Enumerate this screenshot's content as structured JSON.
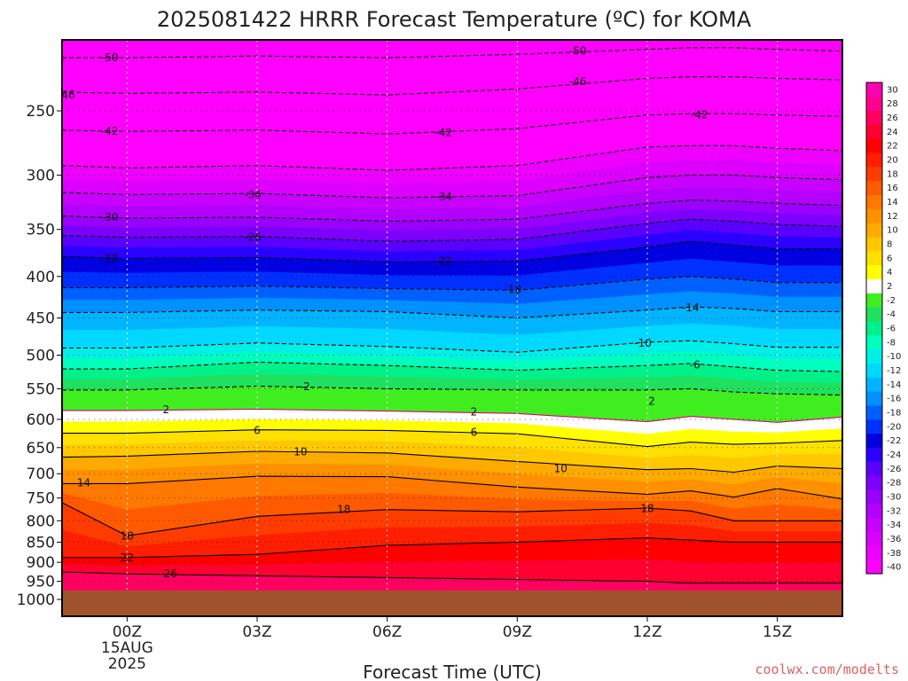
{
  "title": "2025081422 HRRR Forecast Temperature (ºC) for KOMA",
  "chart_data": {
    "type": "heatmap",
    "title": "2025081422 HRRR Forecast Temperature (ºC) for KOMA",
    "xlabel": "Forecast Time (UTC)",
    "ylabel": "",
    "x_tick_labels": [
      {
        "t": 2,
        "label": "00Z"
      },
      {
        "t": 5,
        "label": "03Z"
      },
      {
        "t": 8,
        "label": "06Z"
      },
      {
        "t": 11,
        "label": "09Z"
      },
      {
        "t": 14,
        "label": "12Z"
      },
      {
        "t": 17,
        "label": "15Z"
      }
    ],
    "x_date_labels": [
      "15AUG",
      "2025"
    ],
    "xlim": [
      0.5,
      18.5
    ],
    "y_tick_labels": [
      1000,
      950,
      900,
      850,
      800,
      750,
      700,
      650,
      600,
      550,
      500,
      450,
      400,
      350,
      300,
      250
    ],
    "ylim": [
      1000,
      200
    ],
    "y_scale": "log-pressure",
    "grid": true,
    "colorbar": {
      "levels": [
        -40,
        -38,
        -36,
        -34,
        -32,
        -30,
        -28,
        -26,
        -24,
        -22,
        -20,
        -18,
        -16,
        -14,
        -12,
        -10,
        -8,
        -6,
        -4,
        -2,
        2,
        4,
        6,
        8,
        10,
        12,
        14,
        16,
        18,
        20,
        22,
        24,
        26,
        28,
        30
      ],
      "colors": [
        "#ff00ff",
        "#ee00ff",
        "#dd00ff",
        "#c800ff",
        "#b400ff",
        "#9a00ff",
        "#7d00ff",
        "#5a00ff",
        "#2a00ff",
        "#0000e0",
        "#0030ff",
        "#0060ff",
        "#0090ff",
        "#00b4ff",
        "#00d8ff",
        "#00f0e8",
        "#00ffbc",
        "#00f08a",
        "#20e060",
        "#40ee20",
        "#ffffff",
        "#ffff00",
        "#ffe000",
        "#ffc800",
        "#ffaa00",
        "#ff9000",
        "#ff7800",
        "#ff5a00",
        "#ff3c00",
        "#ff1e00",
        "#ff0000",
        "#ff0030",
        "#ff0060",
        "#ff0090",
        "#ff00b0"
      ]
    },
    "times": [
      0.5,
      2,
      5,
      8,
      11,
      14,
      15,
      16,
      17,
      18.5
    ],
    "isotherms": [
      {
        "value": -50,
        "p": [
          215,
          215,
          214,
          215,
          213,
          210,
          209,
          209,
          210,
          211
        ]
      },
      {
        "value": -46,
        "p": [
          237,
          238,
          237,
          239,
          235,
          228,
          227,
          227,
          228,
          229
        ]
      },
      {
        "value": -42,
        "p": [
          264,
          265,
          264,
          267,
          263,
          253,
          252,
          252,
          253,
          254
        ]
      },
      {
        "value": -38,
        "p": [
          292,
          294,
          292,
          296,
          292,
          277,
          276,
          276,
          278,
          280
        ]
      },
      {
        "value": -34,
        "p": [
          315,
          317,
          316,
          320,
          318,
          302,
          300,
          300,
          302,
          304
        ]
      },
      {
        "value": -30,
        "p": [
          337,
          339,
          338,
          342,
          340,
          325,
          322,
          323,
          325,
          327
        ]
      },
      {
        "value": -26,
        "p": [
          356,
          358,
          357,
          362,
          360,
          344,
          340,
          342,
          345,
          347
        ]
      },
      {
        "value": -22,
        "p": [
          378,
          380,
          379,
          384,
          383,
          368,
          362,
          366,
          370,
          370
        ]
      },
      {
        "value": -18,
        "p": [
          413,
          413,
          411,
          414,
          416,
          403,
          400,
          403,
          407,
          407
        ]
      },
      {
        "value": -14,
        "p": [
          443,
          443,
          440,
          442,
          450,
          440,
          436,
          438,
          442,
          442
        ]
      },
      {
        "value": -10,
        "p": [
          490,
          490,
          483,
          488,
          496,
          482,
          480,
          484,
          489,
          489
        ]
      },
      {
        "value": -6,
        "p": [
          520,
          520,
          510,
          515,
          522,
          515,
          512,
          517,
          522,
          524
        ]
      },
      {
        "value": -2,
        "p": [
          552,
          552,
          546,
          550,
          552,
          552,
          550,
          555,
          558,
          560
        ]
      },
      {
        "value": 2,
        "p": [
          585,
          585,
          583,
          586,
          590,
          604,
          595,
          600,
          605,
          596
        ]
      },
      {
        "value": 6,
        "p": [
          624,
          624,
          618,
          619,
          625,
          648,
          640,
          644,
          642,
          637
        ]
      },
      {
        "value": 10,
        "p": [
          668,
          666,
          657,
          660,
          676,
          692,
          690,
          697,
          685,
          690
        ]
      },
      {
        "value": 14,
        "p": [
          720,
          720,
          705,
          706,
          727,
          742,
          735,
          748,
          730,
          752
        ]
      },
      {
        "value": 18,
        "p": [
          760,
          835,
          790,
          775,
          780,
          772,
          778,
          800,
          800,
          800
        ]
      },
      {
        "value": 22,
        "p": [
          888,
          888,
          880,
          858,
          850,
          840,
          845,
          850,
          850,
          850
        ]
      },
      {
        "value": 26,
        "p": [
          925,
          930,
          935,
          940,
          945,
          950,
          955,
          955,
          955,
          955
        ]
      }
    ],
    "contour_labels": [
      {
        "value": "-50",
        "t": 1.6,
        "p": 215
      },
      {
        "value": "-46",
        "t": 0.6,
        "p": 239
      },
      {
        "value": "-42",
        "t": 1.6,
        "p": 265
      },
      {
        "value": "-34",
        "t": 4.9,
        "p": 317
      },
      {
        "value": "-30",
        "t": 1.6,
        "p": 338
      },
      {
        "value": "-26",
        "t": 4.9,
        "p": 358
      },
      {
        "value": "-22",
        "t": 1.6,
        "p": 380
      },
      {
        "value": "-42",
        "t": 9.3,
        "p": 266
      },
      {
        "value": "-34",
        "t": 9.3,
        "p": 319
      },
      {
        "value": "-22",
        "t": 9.3,
        "p": 383
      },
      {
        "value": "-18",
        "t": 10.9,
        "p": 415
      },
      {
        "value": "-50",
        "t": 12.4,
        "p": 211
      },
      {
        "value": "-46",
        "t": 12.4,
        "p": 230
      },
      {
        "value": "-42",
        "t": 15.2,
        "p": 253
      },
      {
        "value": "-14",
        "t": 15.0,
        "p": 437
      },
      {
        "value": "-10",
        "t": 13.9,
        "p": 483
      },
      {
        "value": "-6",
        "t": 15.1,
        "p": 514
      },
      {
        "value": "-2",
        "t": 6.1,
        "p": 547
      },
      {
        "value": "2",
        "t": 2.9,
        "p": 584
      },
      {
        "value": "2",
        "t": 10.0,
        "p": 587
      },
      {
        "value": "2",
        "t": 14.1,
        "p": 570
      },
      {
        "value": "6",
        "t": 5.0,
        "p": 619
      },
      {
        "value": "6",
        "t": 10.0,
        "p": 622
      },
      {
        "value": "10",
        "t": 6.0,
        "p": 658
      },
      {
        "value": "10",
        "t": 12.0,
        "p": 690
      },
      {
        "value": "14",
        "t": 1.0,
        "p": 718
      },
      {
        "value": "18",
        "t": 2.0,
        "p": 835
      },
      {
        "value": "18",
        "t": 7.0,
        "p": 775
      },
      {
        "value": "18",
        "t": 14.0,
        "p": 773
      },
      {
        "value": "22",
        "t": 2.0,
        "p": 888
      },
      {
        "value": "26",
        "t": 3.0,
        "p": 930
      }
    ]
  },
  "watermark": "coolwx.com/modelts"
}
